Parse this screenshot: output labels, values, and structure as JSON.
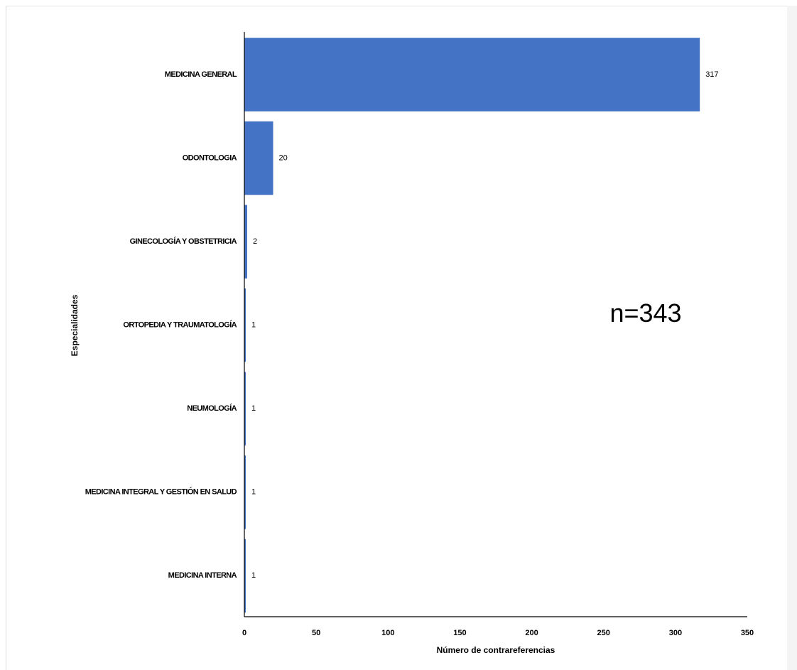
{
  "chart_data": {
    "type": "bar",
    "orientation": "horizontal",
    "categories": [
      "MEDICINA GENERAL",
      "ODONTOLOGIA",
      "GINECOLOGÍA Y OBSTETRICIA",
      "ORTOPEDIA Y TRAUMATOLOGÍA",
      "NEUMOLOGÍA",
      "MEDICINA INTEGRAL Y GESTIÓN EN SALUD",
      "MEDICINA INTERNA"
    ],
    "values": [
      317,
      20,
      2,
      1,
      1,
      1,
      1
    ],
    "value_labels": [
      "317",
      "20",
      "2",
      "1",
      "1",
      "1",
      "1"
    ],
    "xlabel": "Número de contrareferencias",
    "ylabel": "Especialidades",
    "xlim": [
      0,
      350
    ],
    "xticks": [
      0,
      50,
      100,
      150,
      200,
      250,
      300,
      350
    ],
    "xtick_labels": [
      "0",
      "50",
      "100",
      "150",
      "200",
      "250",
      "300",
      "350"
    ],
    "annotation": "n=343",
    "bar_color": "#4472C4",
    "grid": false,
    "legend": "none"
  }
}
